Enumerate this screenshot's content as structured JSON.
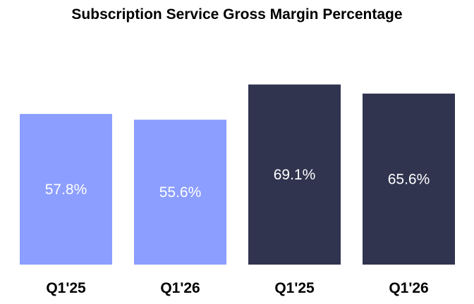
{
  "chart_data": {
    "type": "bar",
    "title": "Subscription Service Gross Margin Percentage",
    "xlabel": "",
    "ylabel": "",
    "categories": [
      "Q1'25",
      "Q1'26",
      "Q1'25",
      "Q1'26"
    ],
    "values": [
      57.8,
      55.6,
      69.1,
      65.6
    ],
    "data_labels": [
      "57.8%",
      "55.6%",
      "69.1%",
      "65.6%"
    ],
    "bar_colors": [
      "#8c9eff",
      "#8c9eff",
      "#30344f",
      "#30344f"
    ],
    "label_color": "#ffffff",
    "ylim": [
      0,
      70
    ],
    "grid": false,
    "legend": "none"
  }
}
